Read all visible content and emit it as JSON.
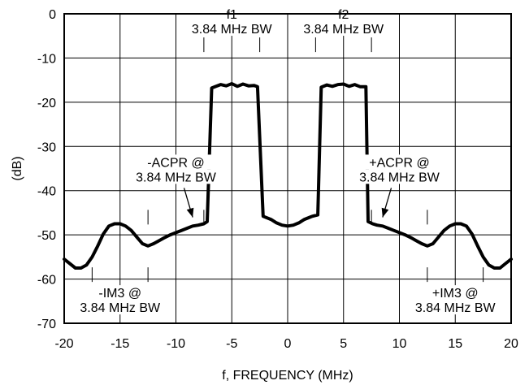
{
  "chart_data": {
    "type": "line",
    "title": "",
    "xlabel": "f, FREQUENCY (MHz)",
    "ylabel": "(dB)",
    "xlim": [
      -20,
      20
    ],
    "ylim": [
      -70,
      0
    ],
    "xticks": [
      -20,
      -15,
      -10,
      -5,
      0,
      5,
      10,
      15,
      20
    ],
    "yticks": [
      0,
      -10,
      -20,
      -30,
      -40,
      -50,
      -60,
      -70
    ],
    "grid": true,
    "legend": "none",
    "series": [
      {
        "x": [
          -20,
          -19.5,
          -19,
          -18.5,
          -18,
          -17.5,
          -17,
          -16.5,
          -16,
          -15.5,
          -15,
          -14.5,
          -14,
          -13.5,
          -13,
          -12.5,
          -12,
          -11.5,
          -11,
          -10.5,
          -10,
          -9.5,
          -9,
          -8.5,
          -8,
          -7.5,
          -7.2,
          -6.8,
          -6.5,
          -6,
          -5.5,
          -5,
          -4.5,
          -4,
          -3.5,
          -3,
          -2.7,
          -2.2,
          -1.5,
          -1,
          -0.5,
          0,
          0.5,
          1,
          1.5,
          2.2,
          2.7,
          3,
          3.5,
          4,
          4.5,
          5,
          5.5,
          6,
          6.5,
          7,
          7.2,
          7.6,
          8,
          8.5,
          9,
          9.5,
          10,
          10.5,
          11,
          11.5,
          12,
          12.5,
          13,
          13.5,
          14,
          14.5,
          15,
          15.5,
          16,
          16.5,
          17,
          17.5,
          18,
          18.5,
          19,
          19.5,
          20
        ],
        "y": [
          -55.5,
          -56.5,
          -57.5,
          -57.5,
          -56.8,
          -55,
          -52.5,
          -49.8,
          -48,
          -47.5,
          -47.5,
          -48,
          -49,
          -50.5,
          -52,
          -52.5,
          -52,
          -51.3,
          -50.6,
          -50,
          -49.5,
          -49,
          -48.5,
          -48,
          -47.8,
          -47.5,
          -47,
          -16.8,
          -16.5,
          -16,
          -16.3,
          -15.8,
          -16.4,
          -15.9,
          -16.3,
          -16.2,
          -16.5,
          -45.8,
          -46.5,
          -47.3,
          -47.8,
          -48,
          -47.8,
          -47.3,
          -46.5,
          -45.8,
          -45.5,
          -16.6,
          -16.1,
          -16.4,
          -16,
          -15.9,
          -16.4,
          -16,
          -16.5,
          -16.5,
          -47,
          -47.5,
          -47.8,
          -48,
          -48.5,
          -49,
          -49.5,
          -50,
          -50.6,
          -51.3,
          -52,
          -52.5,
          -52,
          -50.5,
          -49,
          -48,
          -47.5,
          -47.5,
          -48,
          -49.8,
          -52.5,
          -55,
          -56.8,
          -57.5,
          -57.5,
          -56.5,
          -55.5
        ]
      }
    ],
    "annotations": [
      {
        "lines": [
          "f1",
          "3.84 MHz BW"
        ],
        "bracket_x": [
          -7.5,
          -2.5
        ],
        "y": -7
      },
      {
        "lines": [
          "f2",
          "3.84 MHz BW"
        ],
        "bracket_x": [
          2.5,
          7.5
        ],
        "y": -7
      },
      {
        "lines": [
          "-ACPR @",
          "3.84 MHz BW"
        ],
        "bracket_x": [
          -12.5,
          -7.5
        ],
        "y": -46,
        "arrow_to": [
          -8.5,
          -47.5
        ]
      },
      {
        "lines": [
          "+ACPR @",
          "3.84 MHz BW"
        ],
        "bracket_x": [
          7.5,
          12.5
        ],
        "y": -46,
        "arrow_to": [
          8.5,
          -47.5
        ]
      },
      {
        "lines": [
          "-IM3 @",
          "3.84 MHz BW"
        ],
        "bracket_x": [
          -17.5,
          -12.5
        ],
        "y": -59
      },
      {
        "lines": [
          "+IM3 @",
          "3.84 MHz BW"
        ],
        "bracket_x": [
          12.5,
          17.5
        ],
        "y": -59
      }
    ]
  }
}
